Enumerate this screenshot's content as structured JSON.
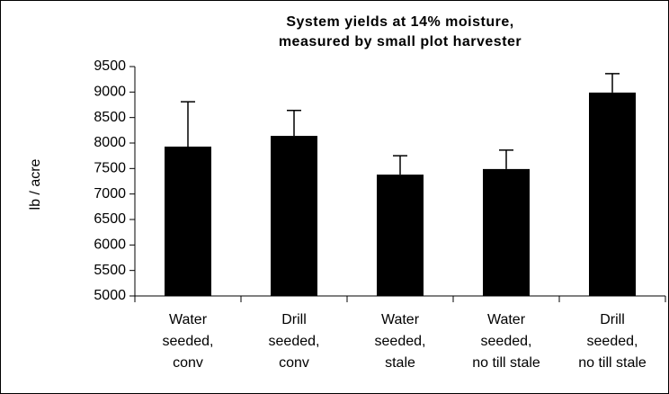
{
  "chart_data": {
    "type": "bar",
    "title": [
      "System yields at 14% moisture,",
      "measured by small plot harvester"
    ],
    "y_label": "lb / acre",
    "categories": [
      [
        "Water",
        "seeded,",
        "conv"
      ],
      [
        "Drill",
        "seeded,",
        "conv"
      ],
      [
        "Water",
        "seeded,",
        "stale"
      ],
      [
        "Water",
        "seeded,",
        "no till stale"
      ],
      [
        "Drill",
        "seeded,",
        "no till stale"
      ]
    ],
    "values": [
      7930,
      8140,
      7380,
      7490,
      8990
    ],
    "errors": [
      880,
      500,
      370,
      370,
      370
    ],
    "color": "#000000",
    "ylim": [
      5000,
      9500
    ],
    "yticks": [
      5000,
      5500,
      6000,
      6500,
      7000,
      7500,
      8000,
      8500,
      9000,
      9500
    ],
    "grid": false
  }
}
